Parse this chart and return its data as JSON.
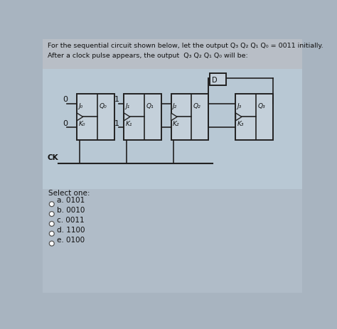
{
  "title_line1": "For the sequential circuit shown below, let the output Q₃ Q₂ Q₁ Q₀ = 0011 initially.",
  "title_line2": "After a clock pulse appears, the output  Q₃ Q₂ Q₁ Q₀ will be:",
  "outer_bg": "#a8b4c0",
  "top_bg": "#b8bec6",
  "circuit_bg": "#b8c8d4",
  "bottom_bg": "#b0bcc8",
  "select_one": "Select one:",
  "options": [
    "a. 0101",
    "b. 0010",
    "c. 0011",
    "d. 1100",
    "e. 0100"
  ],
  "line_color": "#222222",
  "ff_fill": "#c4d0da",
  "text_color": "#111111"
}
